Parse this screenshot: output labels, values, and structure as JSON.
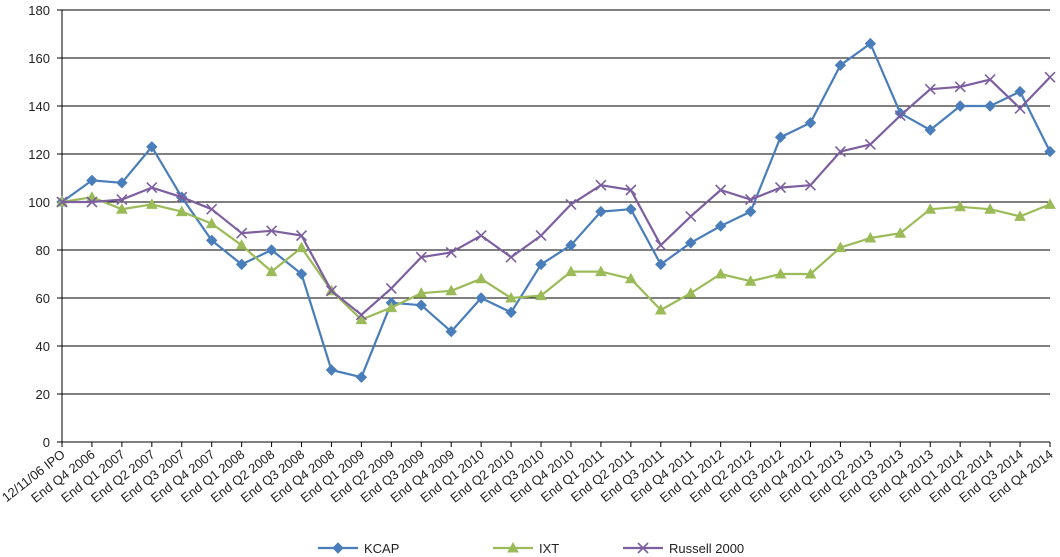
{
  "chart_data": {
    "type": "line",
    "title": "",
    "xlabel": "",
    "ylabel": "",
    "ylim": [
      0,
      180
    ],
    "yticks": [
      0,
      20,
      40,
      60,
      80,
      100,
      120,
      140,
      160,
      180
    ],
    "grid": "horizontal",
    "legend_position": "bottom",
    "categories": [
      "12/11/06 IPO",
      "End Q4 2006",
      "End Q1 2007",
      "End Q2 2007",
      "End Q3 2007",
      "End Q4 2007",
      "End Q1 2008",
      "End Q2 2008",
      "End Q3 2008",
      "End Q4 2008",
      "End Q1 2009",
      "End Q2 2009",
      "End Q3 2009",
      "End Q4 2009",
      "End Q1 2010",
      "End Q2 2010",
      "End Q3 2010",
      "End Q4 2010",
      "End Q1 2011",
      "End Q2 2011",
      "End Q3 2011",
      "End Q4 2011",
      "End Q1 2012",
      "End Q2 2012",
      "End Q3 2012",
      "End Q4 2012",
      "End Q1 2013",
      "End Q2 2013",
      "End Q3 2013",
      "End Q4 2013",
      "End Q1 2014",
      "End Q2 2014",
      "End Q3 2014",
      "End Q4 2014"
    ],
    "series": [
      {
        "name": "KCAP",
        "color": "#4a7ebb",
        "marker": "diamond",
        "values": [
          100,
          109,
          108,
          123,
          102,
          84,
          74,
          80,
          70,
          30,
          27,
          58,
          57,
          46,
          60,
          54,
          74,
          82,
          96,
          97,
          74,
          83,
          90,
          96,
          127,
          133,
          157,
          166,
          137,
          130,
          140,
          140,
          146,
          121
        ]
      },
      {
        "name": "IXT",
        "color": "#9bbb59",
        "marker": "triangle",
        "values": [
          100,
          102,
          97,
          99,
          96,
          91,
          82,
          71,
          81,
          63,
          51,
          56,
          62,
          63,
          68,
          60,
          61,
          71,
          71,
          68,
          55,
          62,
          70,
          67,
          70,
          70,
          81,
          85,
          87,
          97,
          98,
          97,
          94,
          99
        ]
      },
      {
        "name": "Russell 2000",
        "color": "#7d5fa0",
        "marker": "x",
        "values": [
          100,
          100,
          101,
          106,
          102,
          97,
          87,
          88,
          86,
          63,
          53,
          64,
          77,
          79,
          86,
          77,
          86,
          99,
          107,
          105,
          82,
          94,
          105,
          101,
          106,
          107,
          121,
          124,
          136,
          147,
          148,
          151,
          139,
          152
        ]
      }
    ]
  }
}
